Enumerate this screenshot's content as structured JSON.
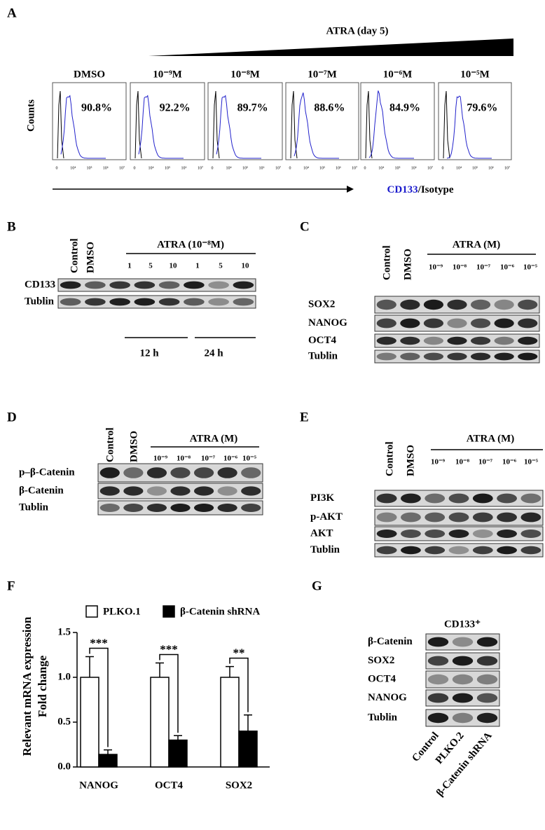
{
  "panel_a": {
    "label": "A",
    "treatment": "ATRA (day 5)",
    "y_label": "Counts",
    "x_label": {
      "marker": "CD133",
      "rest": "/Isotype"
    },
    "axis_ticks": [
      "0",
      "10⁴",
      "10⁵",
      "10⁶",
      "10⁷"
    ],
    "histograms": [
      {
        "title": "DMSO",
        "percent": "90.8%"
      },
      {
        "title": "10⁻⁹M",
        "percent": "92.2%"
      },
      {
        "title": "10⁻⁸M",
        "percent": "89.7%"
      },
      {
        "title": "10⁻⁷M",
        "percent": "88.6%"
      },
      {
        "title": "10⁻⁶M",
        "percent": "84.9%"
      },
      {
        "title": "10⁻⁵M",
        "percent": "79.6%"
      }
    ]
  },
  "panel_b": {
    "label": "B",
    "lanes": [
      "Control",
      "DMSO"
    ],
    "treatment": "ATRA  (10⁻⁸M)",
    "lane_numbers": [
      "1",
      "5",
      "10",
      "1",
      "5",
      "10"
    ],
    "rows": [
      "CD133",
      "Tublin"
    ],
    "time_groups": [
      "12 h",
      "24 h"
    ]
  },
  "panel_c": {
    "label": "C",
    "lanes": [
      "Control",
      "DMSO"
    ],
    "treatment": "ATRA (M)",
    "concentrations": [
      "10⁻⁹",
      "10⁻⁸",
      "10⁻⁷",
      "10⁻⁶",
      "10⁻⁵"
    ],
    "rows": [
      "SOX2",
      "NANOG",
      "OCT4",
      "Tublin"
    ]
  },
  "panel_d": {
    "label": "D",
    "lanes": [
      "Control",
      "DMSO"
    ],
    "treatment": "ATRA (M)",
    "concentrations": [
      "10⁻⁹",
      "10⁻⁸",
      "10⁻⁷",
      "10⁻⁶",
      "10⁻⁵"
    ],
    "rows": [
      "p–β-Catenin",
      "β-Catenin",
      "Tublin"
    ]
  },
  "panel_e": {
    "label": "E",
    "lanes": [
      "Control",
      "DMSO"
    ],
    "treatment": "ATRA (M)",
    "concentrations": [
      "10⁻⁹",
      "10⁻⁸",
      "10⁻⁷",
      "10⁻⁶",
      "10⁻⁵"
    ],
    "rows": [
      "PI3K",
      "p-AKT",
      "AKT",
      "Tublin"
    ]
  },
  "chart_data": {
    "type": "bar",
    "label": "F",
    "y_label": [
      "Relevant mRNA expression",
      "Fold change"
    ],
    "categories": [
      "NANOG",
      "OCT4",
      "SOX2"
    ],
    "series": [
      {
        "name": "PLKO.1",
        "color": "#ffffff",
        "values": [
          1.0,
          1.0,
          1.0
        ],
        "errors": [
          0.23,
          0.16,
          0.12
        ]
      },
      {
        "name": "β-Catenin shRNA",
        "color": "#000000",
        "values": [
          0.14,
          0.3,
          0.4
        ],
        "errors": [
          0.05,
          0.05,
          0.18
        ]
      }
    ],
    "annotations": [
      "***",
      "***",
      "**"
    ],
    "ylim": [
      0,
      1.5
    ],
    "yticks": [
      {
        "value": 0,
        "label": "0.0"
      },
      {
        "value": 0.5,
        "label": "0.5"
      },
      {
        "value": 1,
        "label": "1.0"
      },
      1.5
    ]
  },
  "panel_g": {
    "label": "G",
    "title": "CD133⁺",
    "rows": [
      "β-Catenin",
      "SOX2",
      "OCT4",
      "NANOG",
      "Tublin"
    ],
    "lanes": [
      "Control",
      "PLKO.2",
      "β-Catenin shRNA"
    ]
  }
}
